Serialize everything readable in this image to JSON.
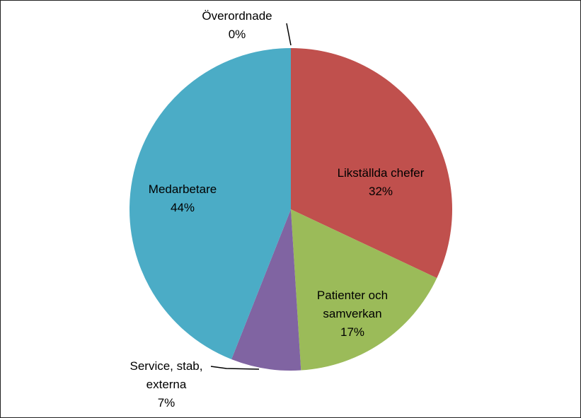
{
  "chart_data": {
    "type": "pie",
    "categories": [
      "Överordnade",
      "Likställda chefer",
      "Patienter och samverkan",
      "Service, stab, externa",
      "Medarbetare"
    ],
    "values": [
      0,
      32,
      17,
      7,
      44
    ],
    "value_labels": [
      "0%",
      "32%",
      "17%",
      "7%",
      "44%"
    ],
    "colors": [
      "#4f81bd",
      "#c0504d",
      "#9bbb59",
      "#8064a2",
      "#4bacc6"
    ]
  }
}
